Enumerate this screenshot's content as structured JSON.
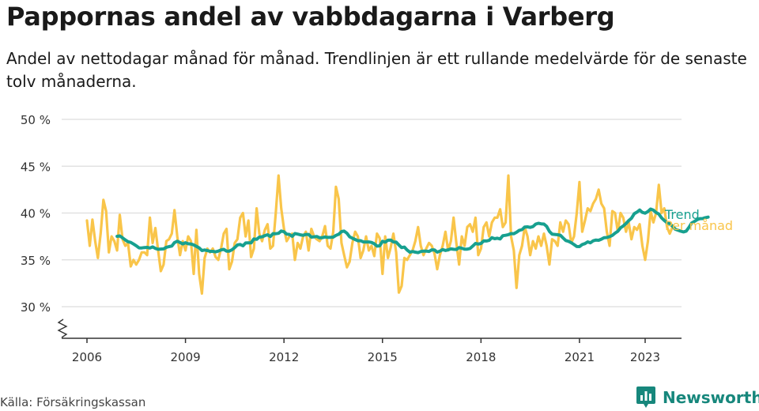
{
  "title": "Pappornas andel av vabbdagarna i Varberg",
  "subtitle": "Andel av nettodagar månad för månad. Trendlinjen är ett rullande medelvärde för de senaste tolv månaderna.",
  "source": "Källa: Försäkringskassan",
  "brand": "Newsworthy",
  "colors": {
    "monthly": "#f9c54a",
    "trend": "#17a08f",
    "grid": "#dddddd",
    "axis": "#333333",
    "brand": "#17877c"
  },
  "chart_data": {
    "type": "line",
    "y_ticks": [
      "30 %",
      "35 %",
      "40 %",
      "45 %",
      "50 %"
    ],
    "x_ticks": [
      "2006",
      "2009",
      "2012",
      "2015",
      "2018",
      "2021",
      "2023"
    ],
    "ylim": [
      30,
      50
    ],
    "y_axis_broken": true,
    "series": [
      {
        "name": "Per månad",
        "start": "2006-01",
        "values": [
          39.2,
          36.5,
          39.3,
          37.0,
          35.2,
          37.8,
          41.4,
          40.2,
          35.8,
          37.5,
          37.0,
          36.0,
          39.8,
          37.2,
          36.5,
          36.8,
          34.3,
          35.0,
          34.5,
          35.0,
          35.8,
          35.8,
          35.5,
          39.5,
          36.8,
          38.4,
          36.0,
          33.8,
          34.5,
          37.0,
          37.2,
          37.8,
          40.3,
          37.5,
          35.5,
          37.0,
          36.0,
          37.5,
          37.0,
          33.5,
          38.2,
          33.5,
          31.4,
          35.2,
          36.2,
          35.8,
          36.2,
          35.3,
          35.0,
          36.2,
          37.8,
          38.3,
          34.0,
          34.8,
          36.8,
          37.2,
          39.5,
          40.0,
          37.5,
          39.2,
          35.3,
          36.2,
          40.5,
          37.8,
          37.0,
          38.2,
          38.8,
          36.2,
          36.5,
          40.0,
          44.0,
          40.5,
          38.3,
          37.0,
          37.5,
          37.8,
          35.0,
          36.8,
          36.2,
          37.5,
          38.0,
          36.0,
          38.3,
          37.5,
          37.2,
          37.0,
          37.5,
          38.6,
          36.5,
          36.2,
          38.0,
          42.8,
          41.5,
          36.8,
          35.5,
          34.2,
          34.8,
          36.8,
          38.0,
          37.5,
          35.2,
          36.0,
          37.5,
          36.0,
          36.5,
          35.4,
          37.8,
          37.3,
          33.5,
          37.5,
          35.2,
          36.3,
          37.8,
          35.8,
          31.5,
          32.2,
          35.2,
          35.0,
          35.5,
          36.0,
          37.0,
          38.5,
          36.5,
          35.5,
          36.2,
          36.8,
          36.5,
          35.7,
          34.0,
          35.5,
          36.5,
          38.0,
          36.0,
          37.0,
          39.5,
          36.8,
          34.5,
          37.5,
          36.5,
          38.5,
          38.8,
          38.0,
          39.5,
          35.5,
          36.2,
          38.5,
          39.0,
          37.5,
          39.0,
          39.5,
          39.5,
          40.4,
          38.5,
          39.0,
          44.0,
          37.5,
          36.0,
          32.0,
          35.5,
          36.5,
          38.5,
          37.5,
          35.5,
          37.0,
          36.2,
          37.5,
          36.5,
          37.8,
          36.5,
          34.5,
          37.2,
          37.0,
          36.5,
          39.0,
          38.0,
          39.2,
          38.8,
          36.8,
          37.5,
          40.0,
          43.3,
          38.0,
          39.2,
          40.5,
          40.2,
          41.0,
          41.5,
          42.5,
          41.0,
          40.5,
          38.0,
          36.5,
          40.2,
          40.0,
          38.0,
          40.0,
          39.5,
          38.0,
          39.0,
          37.2,
          38.5,
          38.2,
          38.8,
          36.5,
          35.0,
          37.0,
          40.2,
          39.0,
          40.0,
          43.0,
          40.0,
          40.5,
          38.5,
          37.8,
          38.5
        ]
      },
      {
        "name": "Trend",
        "start": "2006-12",
        "values": [
          37.51,
          37.55,
          37.35,
          37.12,
          36.94,
          36.86,
          36.69,
          36.51,
          36.28,
          36.27,
          36.31,
          36.33,
          36.26,
          36.38,
          36.22,
          36.13,
          36.15,
          36.17,
          36.34,
          36.41,
          36.47,
          36.84,
          36.99,
          36.85,
          36.7,
          36.83,
          36.72,
          36.69,
          36.59,
          36.44,
          36.28,
          35.99,
          36.05,
          35.99,
          35.91,
          35.91,
          35.86,
          35.93,
          36.06,
          36.12,
          35.93,
          35.93,
          36.08,
          36.31,
          36.59,
          36.64,
          36.5,
          36.8,
          36.82,
          36.81,
          37.23,
          37.19,
          37.43,
          37.46,
          37.59,
          37.68,
          37.49,
          37.8,
          37.79,
          37.83,
          38.08,
          38.0,
          37.75,
          37.71,
          37.51,
          37.81,
          37.75,
          37.67,
          37.62,
          37.71,
          37.71,
          37.43,
          37.46,
          37.49,
          37.36,
          37.37,
          37.44,
          37.39,
          37.41,
          37.43,
          37.61,
          37.73,
          38.02,
          38.07,
          37.84,
          37.46,
          37.31,
          37.17,
          37.04,
          37.05,
          36.91,
          36.91,
          36.91,
          36.86,
          36.72,
          36.46,
          36.5,
          36.98,
          36.89,
          37.1,
          37.11,
          36.91,
          36.89,
          36.59,
          36.3,
          36.36,
          36.05,
          35.82,
          35.89,
          35.82,
          35.77,
          35.89,
          35.93,
          35.93,
          35.89,
          36.07,
          36.06,
          35.82,
          35.93,
          36.09,
          36.0,
          36.07,
          36.17,
          36.13,
          36.11,
          36.3,
          36.24,
          36.14,
          36.14,
          36.21,
          36.47,
          36.75,
          36.68,
          36.75,
          37.02,
          37.01,
          37.08,
          37.37,
          37.26,
          37.31,
          37.23,
          37.58,
          37.62,
          37.69,
          37.81,
          37.79,
          37.94,
          38.15,
          38.23,
          38.51,
          38.52,
          38.46,
          38.55,
          38.82,
          38.9,
          38.84,
          38.82,
          38.57,
          38.04,
          37.74,
          37.71,
          37.68,
          37.63,
          37.33,
          37.06,
          36.98,
          36.83,
          36.63,
          36.42,
          36.41,
          36.63,
          36.73,
          36.92,
          36.82,
          37.03,
          37.11,
          37.09,
          37.21,
          37.37,
          37.38,
          37.48,
          37.61,
          37.85,
          38.05,
          38.42,
          38.62,
          38.88,
          39.19,
          39.44,
          39.92,
          40.09,
          40.32,
          40.07,
          39.98,
          40.16,
          40.42,
          40.3,
          40.05,
          39.89,
          39.48,
          39.21,
          38.97,
          38.85,
          38.6,
          38.27,
          38.17,
          38.06,
          37.98,
          38.07,
          38.46,
          38.93,
          39.1,
          39.29,
          39.4,
          39.41,
          39.5,
          39.56
        ]
      }
    ]
  }
}
